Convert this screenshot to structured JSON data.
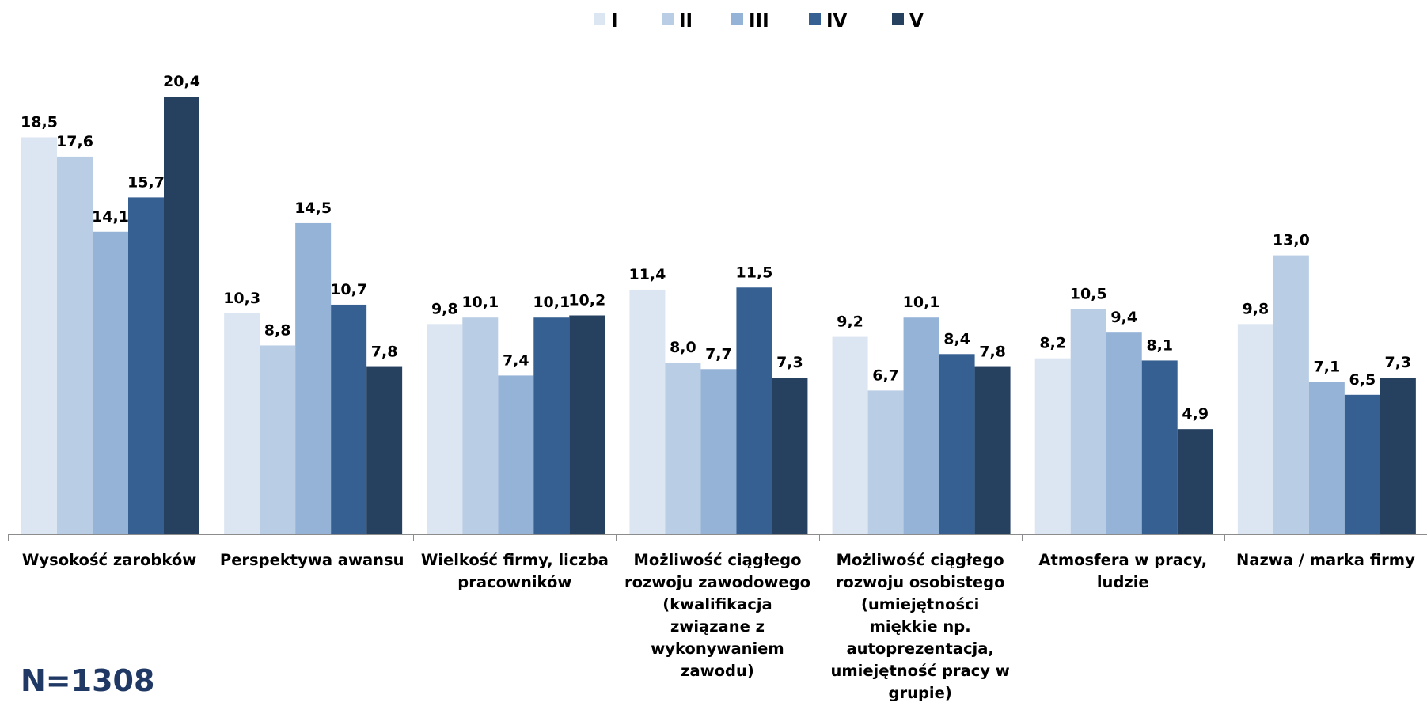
{
  "chart_data": {
    "type": "bar",
    "categories": [
      "Wysokość zarobków",
      "Perspektywa awansu",
      "Wielkość firmy, liczba pracowników",
      "Możliwość ciągłego rozwoju zawodowego (kwalifikacja związane z wykonywaniem zawodu)",
      "Możliwość ciągłego rozwoju osobistego (umiejętności miękkie np. autoprezentacja, umiejętność pracy w grupie)",
      "Atmosfera w pracy, ludzie",
      "Nazwa / marka firmy"
    ],
    "category_display": [
      "Wysokość zarobków",
      "Perspektywa awansu",
      "Wielkość firmy, liczba\npracowników",
      "Możliwość ciągłego\nrozwoju zawodowego\n(kwalifikacja\nzwiązane z\nwykonywaniem\nzawodu)",
      "Możliwość ciągłego\nrozwoju osobistego\n(umiejętności\nmiękkie np.\nautoprezentacja,\numiejętność pracy w\ngrupie)",
      "Atmosfera w pracy,\nludzie",
      "Nazwa / marka firmy"
    ],
    "series": [
      {
        "name": "I",
        "color": "#dce6f2",
        "values": [
          18.5,
          10.3,
          9.8,
          11.4,
          9.2,
          8.2,
          9.8
        ]
      },
      {
        "name": "II",
        "color": "#b9cde5",
        "values": [
          17.6,
          8.8,
          10.1,
          8.0,
          6.7,
          10.5,
          13.0
        ]
      },
      {
        "name": "III",
        "color": "#95b3d7",
        "values": [
          14.1,
          14.5,
          7.4,
          7.7,
          10.1,
          9.4,
          7.1
        ]
      },
      {
        "name": "IV",
        "color": "#366092",
        "values": [
          15.7,
          10.7,
          10.1,
          11.5,
          8.4,
          8.1,
          6.5
        ]
      },
      {
        "name": "V",
        "color": "#26405f",
        "values": [
          20.4,
          7.8,
          10.2,
          7.3,
          7.8,
          4.9,
          7.3
        ]
      }
    ],
    "value_labels": [
      [
        "18,5",
        "10,3",
        "9,8",
        "11,4",
        "9,2",
        "8,2",
        "9,8"
      ],
      [
        "17,6",
        "8,8",
        "10,1",
        "8,0",
        "6,7",
        "10,5",
        "13,0"
      ],
      [
        "14,1",
        "14,5",
        "7,4",
        "7,7",
        "10,1",
        "9,4",
        "7,1"
      ],
      [
        "15,7",
        "10,7",
        "10,1",
        "11,5",
        "8,4",
        "8,1",
        "6,5"
      ],
      [
        "20,4",
        "7,8",
        "10,2",
        "7,3",
        "7,8",
        "4,9",
        "7,3"
      ]
    ],
    "ylim": [
      0,
      20.4
    ],
    "grid": false,
    "legend": "top-center",
    "xlabel": "",
    "ylabel": ""
  },
  "sample_size_label": "N=1308"
}
